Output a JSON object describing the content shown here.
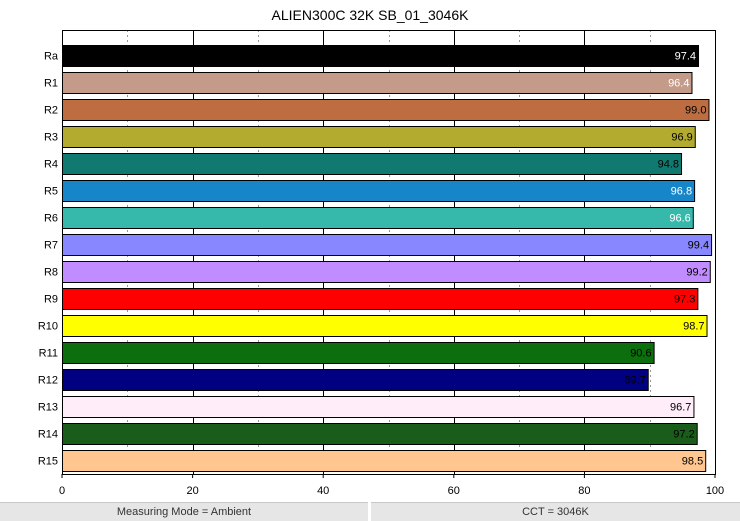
{
  "chart_data": {
    "type": "bar",
    "orientation": "horizontal",
    "title": "ALIEN300C 32K SB_01_3046K",
    "categories": [
      "Ra",
      "R1",
      "R2",
      "R3",
      "R4",
      "R5",
      "R6",
      "R7",
      "R8",
      "R9",
      "R10",
      "R11",
      "R12",
      "R13",
      "R14",
      "R15"
    ],
    "values": [
      97.4,
      96.4,
      99.0,
      96.9,
      94.8,
      96.8,
      96.6,
      99.4,
      99.2,
      97.3,
      98.7,
      90.6,
      89.7,
      96.7,
      97.2,
      98.5
    ],
    "value_labels": [
      "97.4",
      "96.4",
      "99.0",
      "96.9",
      "94.8",
      "96.8",
      "96.6",
      "99.4",
      "99.2",
      "97.3",
      "98.7",
      "90.6",
      "89.7",
      "96.7",
      "97.2",
      "98.5"
    ],
    "colors": [
      "#000000",
      "#c49a88",
      "#bd6d40",
      "#b3aa30",
      "#117a70",
      "#1786c8",
      "#36b9aa",
      "#8887ff",
      "#c08cff",
      "#ff0000",
      "#ffff00",
      "#0d6e0d",
      "#000080",
      "#ffeefa",
      "#1a5c1a",
      "#ffc690"
    ],
    "label_colors": [
      "#ffffff",
      "#ffffff",
      "#000000",
      "#000000",
      "#000000",
      "#ffffff",
      "#ffffff",
      "#000000",
      "#000000",
      "#000000",
      "#000000",
      "#000000",
      "#000000",
      "#000000",
      "#000000",
      "#000000"
    ],
    "xlim": [
      0,
      100
    ],
    "xticks": [
      0,
      20,
      40,
      60,
      80,
      100
    ],
    "grid": true
  },
  "footer": {
    "left": "Measuring Mode = Ambient",
    "right": "CCT = 3046K"
  }
}
